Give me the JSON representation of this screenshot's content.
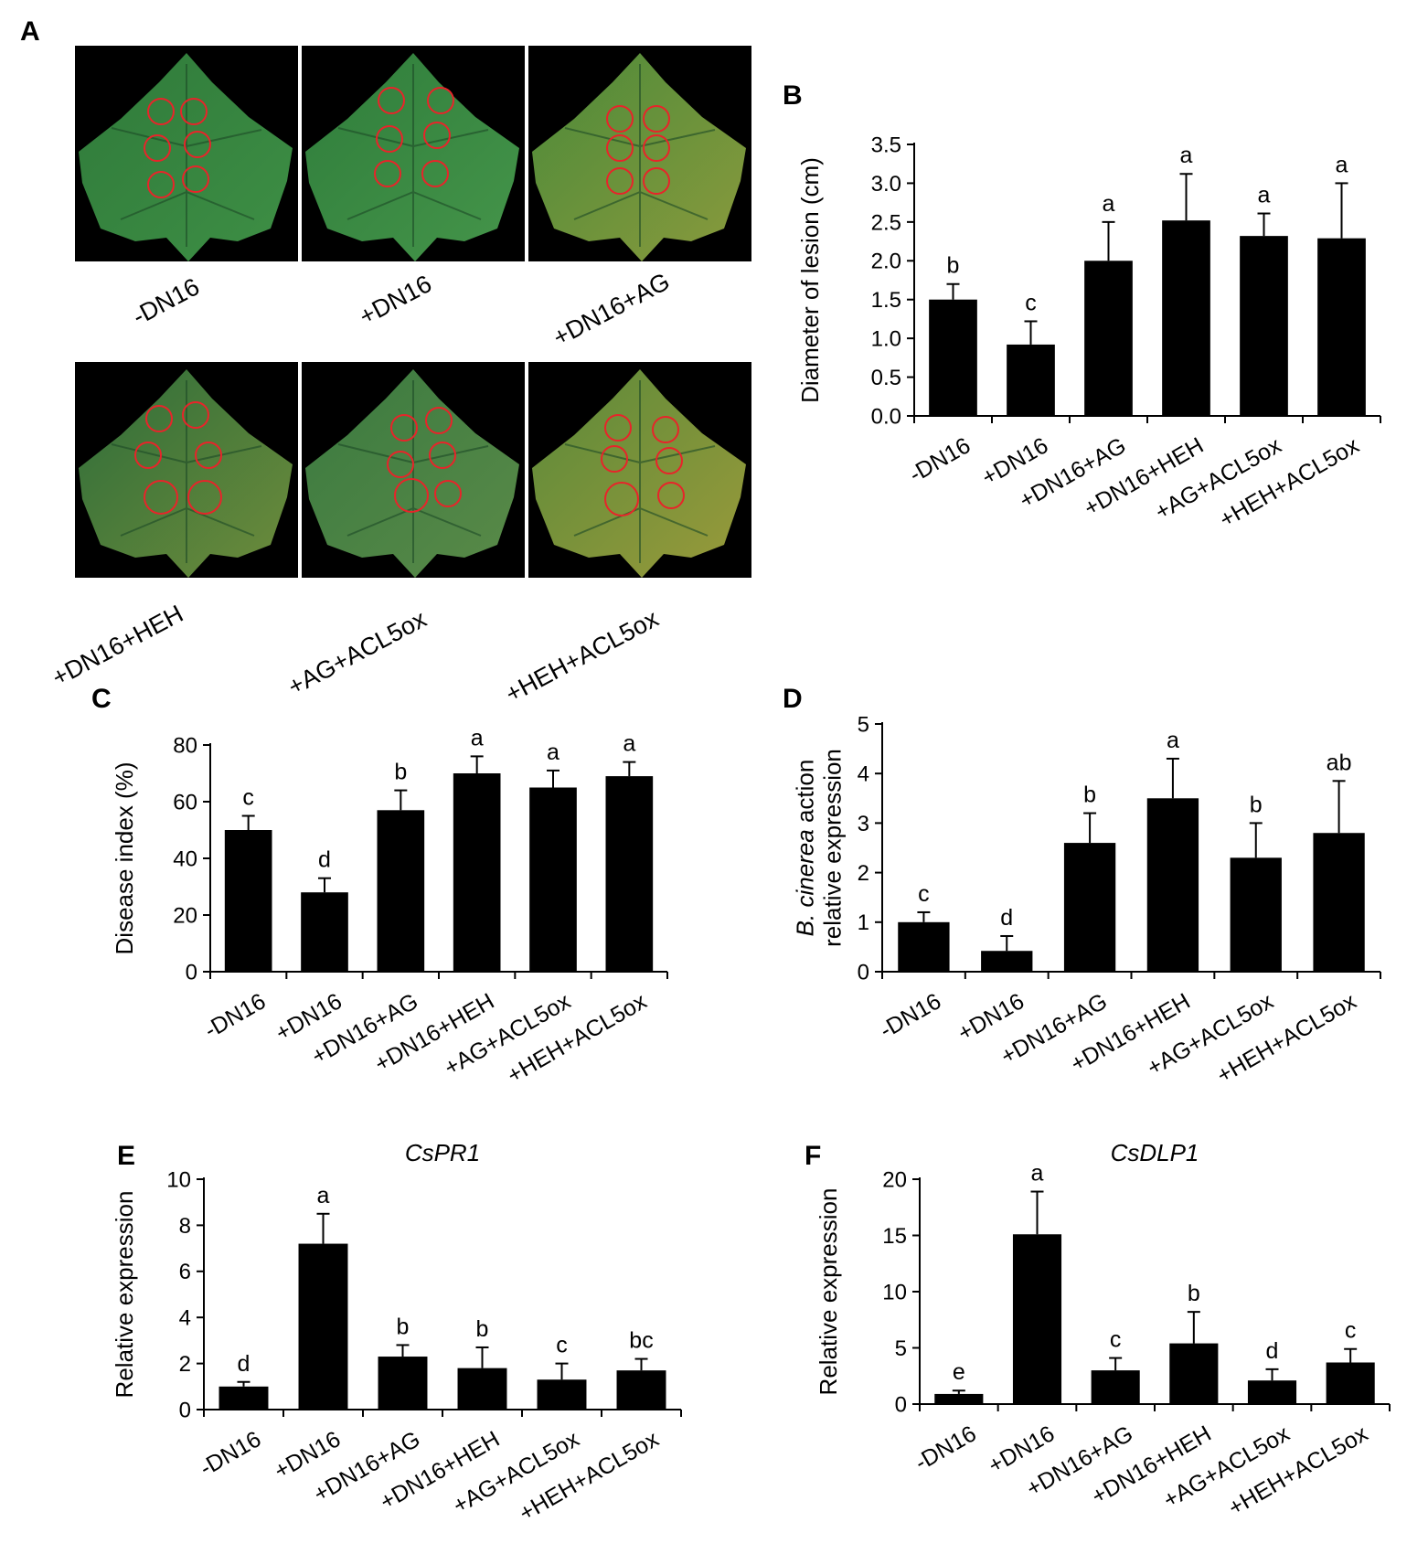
{
  "panels": {
    "A": "A",
    "B": "B",
    "C": "C",
    "D": "D",
    "E": "E",
    "F": "F"
  },
  "photos": {
    "labels": [
      "-DN16",
      "+DN16",
      "+DN16+AG",
      "+DN16+HEH",
      "+AG+ACL5ox",
      "+HEH+ACL5ox"
    ],
    "circle_color": "#e8242a"
  },
  "chart_data": [
    {
      "panel": "B",
      "type": "bar",
      "title": "",
      "categories": [
        "-DN16",
        "+DN16",
        "+DN16+AG",
        "+DN16+HEH",
        "+AG+ACL5ox",
        "+HEH+ACL5ox"
      ],
      "values": [
        1.5,
        0.92,
        2.0,
        2.52,
        2.32,
        2.29
      ],
      "errors": [
        0.2,
        0.3,
        0.5,
        0.6,
        0.29,
        0.71
      ],
      "letters": [
        "b",
        "c",
        "a",
        "a",
        "a",
        "a"
      ],
      "ylabel": "Diameter of lesion (cm)",
      "ylabel_italic": "",
      "ylim": [
        0,
        3.5
      ],
      "yticks": [
        "0.0",
        "0.5",
        "1.0",
        "1.5",
        "2.0",
        "2.5",
        "3.0",
        "3.5"
      ],
      "grid": false,
      "bar_color": "#000000"
    },
    {
      "panel": "C",
      "type": "bar",
      "title": "",
      "categories": [
        "-DN16",
        "+DN16",
        "+DN16+AG",
        "+DN16+HEH",
        "+AG+ACL5ox",
        "+HEH+ACL5ox"
      ],
      "values": [
        50,
        28,
        57,
        70,
        65,
        69
      ],
      "errors": [
        5,
        5,
        7,
        6,
        6,
        5
      ],
      "letters": [
        "c",
        "d",
        "b",
        "a",
        "a",
        "a"
      ],
      "ylabel": "Disease index (%)",
      "ylabel_italic": "",
      "ylim": [
        0,
        80
      ],
      "yticks": [
        "0",
        "20",
        "40",
        "60",
        "80"
      ],
      "grid": false,
      "bar_color": "#000000"
    },
    {
      "panel": "D",
      "type": "bar",
      "title": "",
      "categories": [
        "-DN16",
        "+DN16",
        "+DN16+AG",
        "+DN16+HEH",
        "+AG+ACL5ox",
        "+HEH+ACL5ox"
      ],
      "values": [
        1.0,
        0.42,
        2.6,
        3.5,
        2.3,
        2.8
      ],
      "errors": [
        0.2,
        0.3,
        0.6,
        0.8,
        0.7,
        1.05
      ],
      "letters": [
        "c",
        "d",
        "b",
        "a",
        "b",
        "ab"
      ],
      "ylabel_italic": "B. cinerea",
      "ylabel": " action",
      "ylabel2": "relative expression",
      "ylim": [
        0,
        5
      ],
      "yticks": [
        "0",
        "1",
        "2",
        "3",
        "4",
        "5"
      ],
      "grid": false,
      "bar_color": "#000000"
    },
    {
      "panel": "E",
      "type": "bar",
      "title": "CsPR1",
      "categories": [
        "-DN16",
        "+DN16",
        "+DN16+AG",
        "+DN16+HEH",
        "+AG+ACL5ox",
        "+HEH+ACL5ox"
      ],
      "values": [
        1.0,
        7.2,
        2.3,
        1.8,
        1.3,
        1.7
      ],
      "errors": [
        0.2,
        1.3,
        0.5,
        0.9,
        0.7,
        0.5
      ],
      "letters": [
        "d",
        "a",
        "b",
        "b",
        "c",
        "bc"
      ],
      "ylabel": "Relative expression",
      "ylabel_italic": "",
      "ylim": [
        0,
        10
      ],
      "yticks": [
        "0",
        "2",
        "4",
        "6",
        "8",
        "10"
      ],
      "grid": false,
      "bar_color": "#000000"
    },
    {
      "panel": "F",
      "type": "bar",
      "title": "CsDLP1",
      "categories": [
        "-DN16",
        "+DN16",
        "+DN16+AG",
        "+DN16+HEH",
        "+AG+ACL5ox",
        "+HEH+ACL5ox"
      ],
      "values": [
        0.9,
        15.1,
        3.0,
        5.4,
        2.1,
        3.7
      ],
      "errors": [
        0.3,
        3.8,
        1.1,
        2.8,
        1.0,
        1.2
      ],
      "letters": [
        "e",
        "a",
        "c",
        "b",
        "d",
        "c"
      ],
      "ylabel": "Relative expression",
      "ylabel_italic": "",
      "ylim": [
        0,
        20
      ],
      "yticks": [
        "0",
        "5",
        "10",
        "15",
        "20"
      ],
      "grid": false,
      "bar_color": "#000000"
    }
  ]
}
